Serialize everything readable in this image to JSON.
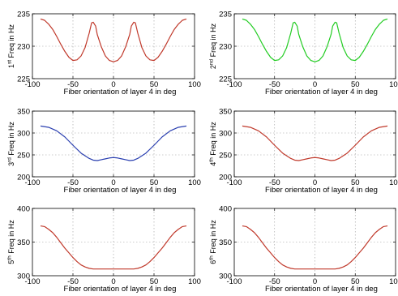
{
  "chart_data": [
    {
      "type": "line",
      "ylabel": {
        "num": "1",
        "sup": "st",
        "rest": " Freq in Hz"
      },
      "xlabel": "Fiber orientation of layer 4 in deg",
      "xlim": [
        -100,
        100
      ],
      "ylim": [
        225,
        235
      ],
      "xticks": [
        -100,
        -50,
        0,
        50,
        100
      ],
      "yticks": [
        225,
        230,
        235
      ],
      "grid": true,
      "color": "#c0392b",
      "x": [
        -90,
        -85,
        -80,
        -75,
        -70,
        -65,
        -60,
        -55,
        -50,
        -45,
        -40,
        -35,
        -30,
        -27,
        -25,
        -22,
        -20,
        -15,
        -10,
        -5,
        0,
        5,
        10,
        15,
        20,
        22,
        25,
        27,
        30,
        35,
        40,
        45,
        50,
        55,
        60,
        65,
        70,
        75,
        80,
        85,
        90
      ],
      "y": [
        234.2,
        234.0,
        233.4,
        232.6,
        231.5,
        230.3,
        229.2,
        228.3,
        227.8,
        227.9,
        228.5,
        229.8,
        232.0,
        233.6,
        233.7,
        233.1,
        231.8,
        229.9,
        228.5,
        227.8,
        227.6,
        227.8,
        228.5,
        229.9,
        231.8,
        233.1,
        233.7,
        233.6,
        232.0,
        229.8,
        228.5,
        227.9,
        227.8,
        228.3,
        229.2,
        230.3,
        231.5,
        232.6,
        233.4,
        234.0,
        234.2
      ]
    },
    {
      "type": "line",
      "ylabel": {
        "num": "2",
        "sup": "nd",
        "rest": " Freq in Hz"
      },
      "xlabel": "Fiber orientation of layer 4 in deg",
      "xlim": [
        -100,
        100
      ],
      "ylim": [
        225,
        235
      ],
      "xticks": [
        -100,
        -50,
        0,
        50,
        100
      ],
      "yticks": [
        225,
        230,
        235
      ],
      "grid": true,
      "color": "#22cc22",
      "x": [
        -90,
        -85,
        -80,
        -75,
        -70,
        -65,
        -60,
        -55,
        -50,
        -45,
        -40,
        -35,
        -30,
        -27,
        -25,
        -22,
        -20,
        -15,
        -10,
        -5,
        0,
        5,
        10,
        15,
        20,
        22,
        25,
        27,
        30,
        35,
        40,
        45,
        50,
        55,
        60,
        65,
        70,
        75,
        80,
        85,
        90
      ],
      "y": [
        234.2,
        234.0,
        233.4,
        232.6,
        231.5,
        230.3,
        229.2,
        228.3,
        227.8,
        227.9,
        228.5,
        229.8,
        232.0,
        233.6,
        233.7,
        233.1,
        231.8,
        229.9,
        228.5,
        227.8,
        227.6,
        227.8,
        228.5,
        229.9,
        231.8,
        233.1,
        233.7,
        233.6,
        232.0,
        229.8,
        228.5,
        227.9,
        227.8,
        228.3,
        229.2,
        230.3,
        231.5,
        232.6,
        233.4,
        234.0,
        234.2
      ]
    },
    {
      "type": "line",
      "ylabel": {
        "num": "3",
        "sup": "rd",
        "rest": " Freq in Hz"
      },
      "xlabel": "Fiber orientation of layer 4 in deg",
      "xlim": [
        -100,
        100
      ],
      "ylim": [
        200,
        350
      ],
      "xticks": [
        -100,
        -50,
        0,
        50,
        100
      ],
      "yticks": [
        200,
        250,
        300,
        350
      ],
      "grid": true,
      "color": "#2a3fb0",
      "x": [
        -90,
        -80,
        -70,
        -60,
        -50,
        -40,
        -30,
        -25,
        -20,
        -15,
        -10,
        -5,
        0,
        5,
        10,
        15,
        20,
        25,
        30,
        40,
        50,
        60,
        70,
        80,
        90
      ],
      "y": [
        316,
        313,
        305,
        291,
        272,
        254,
        242,
        238,
        237,
        239,
        241,
        243,
        244,
        243,
        241,
        239,
        237,
        238,
        242,
        254,
        272,
        291,
        305,
        313,
        316
      ]
    },
    {
      "type": "line",
      "ylabel": {
        "num": "4",
        "sup": "th",
        "rest": " Freq in Hz"
      },
      "xlabel": "Fiber orientation of layer 4 in deg",
      "xlim": [
        -100,
        100
      ],
      "ylim": [
        200,
        350
      ],
      "xticks": [
        -100,
        -50,
        0,
        50,
        100
      ],
      "yticks": [
        200,
        250,
        300,
        350
      ],
      "grid": true,
      "color": "#c0392b",
      "x": [
        -90,
        -80,
        -70,
        -60,
        -50,
        -40,
        -30,
        -25,
        -20,
        -15,
        -10,
        -5,
        0,
        5,
        10,
        15,
        20,
        25,
        30,
        40,
        50,
        60,
        70,
        80,
        90
      ],
      "y": [
        316,
        313,
        305,
        291,
        272,
        254,
        242,
        238,
        237,
        239,
        241,
        243,
        244,
        243,
        241,
        239,
        237,
        238,
        242,
        254,
        272,
        291,
        305,
        313,
        316
      ]
    },
    {
      "type": "line",
      "ylabel": {
        "num": "5",
        "sup": "th",
        "rest": " Freq in Hz"
      },
      "xlabel": "Fiber orientation of layer 4 in deg",
      "xlim": [
        -100,
        100
      ],
      "ylim": [
        300,
        400
      ],
      "xticks": [
        -100,
        -50,
        0,
        50,
        100
      ],
      "yticks": [
        300,
        350,
        400
      ],
      "grid": true,
      "color": "#c0392b",
      "x": [
        -90,
        -85,
        -80,
        -75,
        -70,
        -65,
        -60,
        -55,
        -50,
        -45,
        -40,
        -35,
        -30,
        -25,
        -20,
        -15,
        -10,
        -5,
        0,
        5,
        10,
        15,
        20,
        25,
        30,
        35,
        40,
        45,
        50,
        55,
        60,
        65,
        70,
        75,
        80,
        85,
        90
      ],
      "y": [
        374,
        373,
        369,
        364,
        357,
        349,
        341,
        334,
        327,
        321,
        316,
        313,
        311,
        310,
        310,
        310,
        310,
        310,
        310,
        310,
        310,
        310,
        310,
        310,
        311,
        313,
        316,
        321,
        327,
        334,
        341,
        349,
        357,
        364,
        369,
        373,
        374
      ]
    },
    {
      "type": "line",
      "ylabel": {
        "num": "6",
        "sup": "th",
        "rest": " Freq in Hz"
      },
      "xlabel": "Fiber orientation of layer 4 in deg",
      "xlim": [
        -100,
        100
      ],
      "ylim": [
        300,
        400
      ],
      "xticks": [
        -100,
        -50,
        0,
        50,
        100
      ],
      "yticks": [
        300,
        350,
        400
      ],
      "grid": true,
      "color": "#c0392b",
      "x": [
        -90,
        -85,
        -80,
        -75,
        -70,
        -65,
        -60,
        -55,
        -50,
        -45,
        -40,
        -35,
        -30,
        -25,
        -20,
        -15,
        -10,
        -5,
        0,
        5,
        10,
        15,
        20,
        25,
        30,
        35,
        40,
        45,
        50,
        55,
        60,
        65,
        70,
        75,
        80,
        85,
        90
      ],
      "y": [
        374,
        373,
        369,
        364,
        357,
        349,
        341,
        334,
        327,
        321,
        316,
        313,
        311,
        310,
        310,
        310,
        310,
        310,
        310,
        310,
        310,
        310,
        310,
        310,
        311,
        313,
        316,
        321,
        327,
        334,
        341,
        349,
        357,
        364,
        369,
        373,
        374
      ]
    }
  ]
}
